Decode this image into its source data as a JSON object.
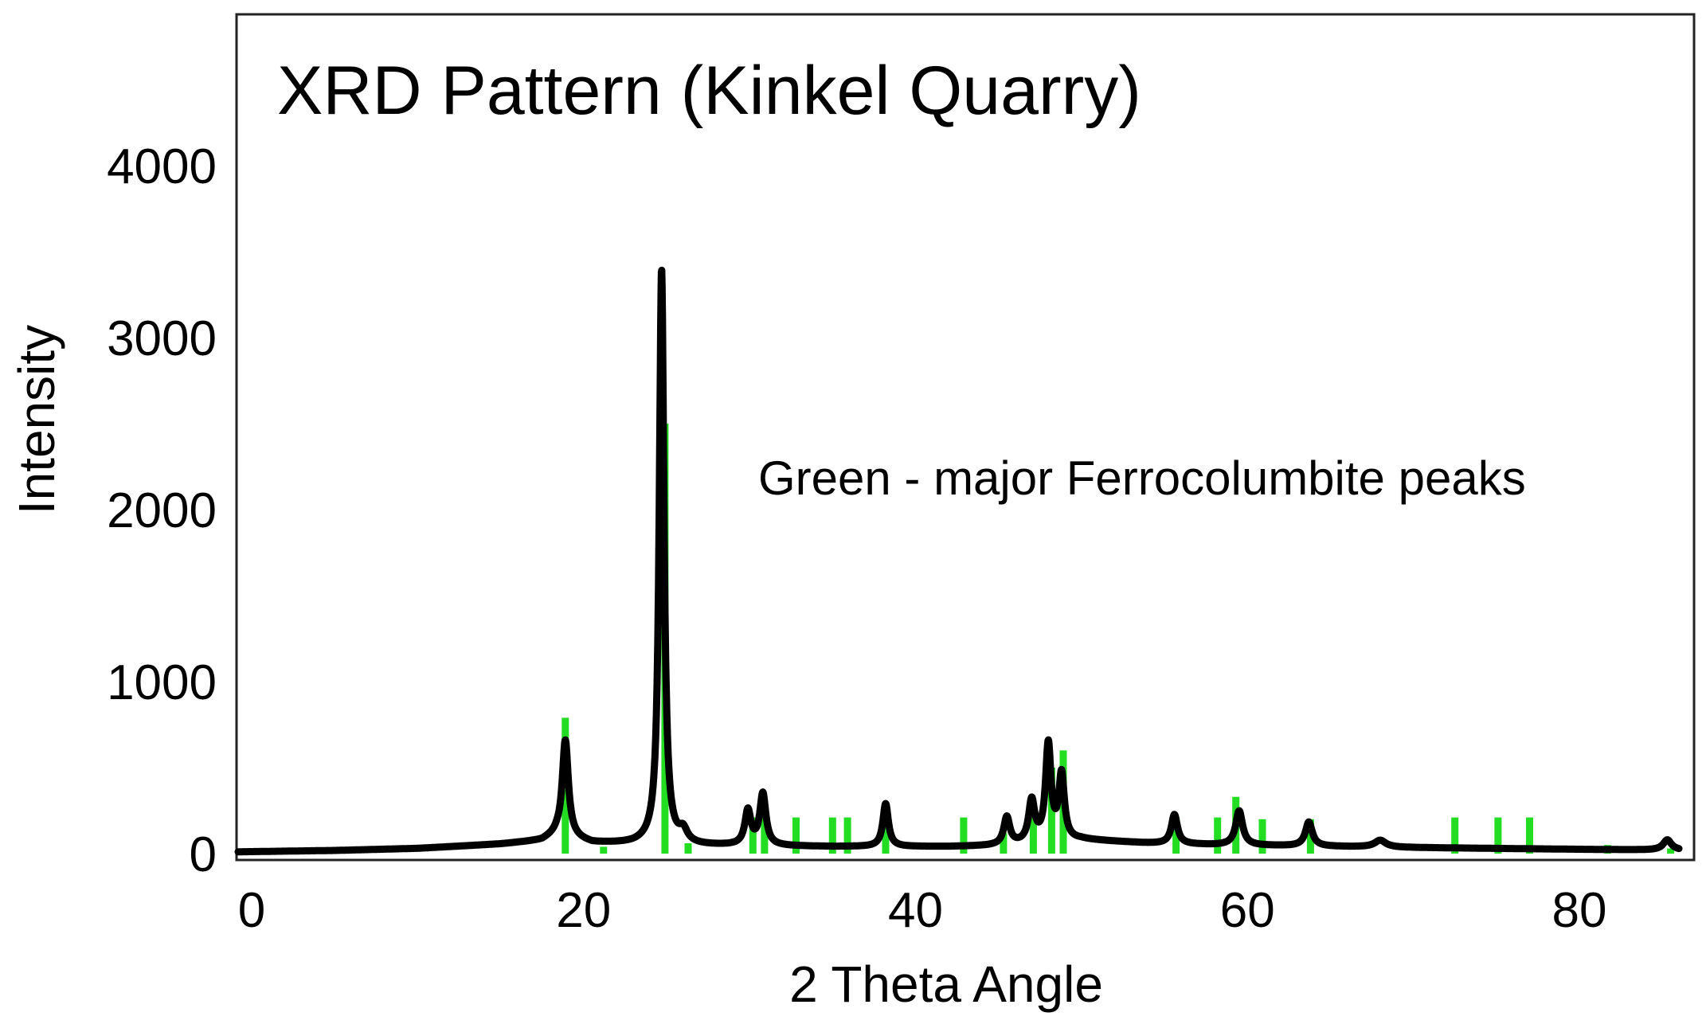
{
  "chart_data": {
    "type": "line",
    "title": "XRD Pattern (Kinkel Quarry)",
    "xlabel": "2 Theta Angle",
    "ylabel": "Intensity",
    "annotation": "Green - major Ferrocolumbite peaks",
    "xlim": [
      -1,
      86
    ],
    "ylim": [
      0,
      4800
    ],
    "x_ticks": [
      0,
      20,
      40,
      60,
      80
    ],
    "x_tick_labels": [
      "0",
      "20",
      "40",
      "60",
      "80"
    ],
    "y_ticks": [
      0,
      1000,
      2000,
      3000,
      4000
    ],
    "y_tick_labels": [
      "0",
      "1000",
      "2000",
      "3000",
      "4000"
    ],
    "grid": false,
    "series": [
      {
        "color": "#000000",
        "baseline": [
          [
            -1,
            10
          ],
          [
            5,
            18
          ],
          [
            10,
            30
          ],
          [
            15,
            55
          ],
          [
            17.5,
            75
          ],
          [
            18.4,
            110
          ],
          [
            20.5,
            60
          ],
          [
            23,
            55
          ],
          [
            24,
            60
          ],
          [
            26,
            45
          ],
          [
            29,
            45
          ],
          [
            35,
            40
          ],
          [
            42,
            40
          ],
          [
            45,
            45
          ],
          [
            50,
            80
          ],
          [
            54,
            60
          ],
          [
            58,
            50
          ],
          [
            62,
            45
          ],
          [
            70,
            35
          ],
          [
            80,
            25
          ],
          [
            86,
            20
          ]
        ],
        "peaks": [
          {
            "x": 18.9,
            "height": 560,
            "width": 0.22
          },
          {
            "x": 24.7,
            "height": 3340,
            "width": 0.17
          },
          {
            "x": 26.0,
            "height": 70,
            "width": 0.3
          },
          {
            "x": 29.9,
            "height": 200,
            "width": 0.22
          },
          {
            "x": 30.8,
            "height": 300,
            "width": 0.22
          },
          {
            "x": 38.2,
            "height": 250,
            "width": 0.2
          },
          {
            "x": 45.5,
            "height": 160,
            "width": 0.22
          },
          {
            "x": 47.0,
            "height": 240,
            "width": 0.22
          },
          {
            "x": 48.0,
            "height": 560,
            "width": 0.2
          },
          {
            "x": 48.8,
            "height": 380,
            "width": 0.2
          },
          {
            "x": 55.6,
            "height": 170,
            "width": 0.22
          },
          {
            "x": 59.5,
            "height": 200,
            "width": 0.25
          },
          {
            "x": 63.7,
            "height": 140,
            "width": 0.25
          },
          {
            "x": 68.0,
            "height": 40,
            "width": 0.4
          },
          {
            "x": 85.3,
            "height": 60,
            "width": 0.3
          }
        ]
      },
      {
        "name": "major Ferrocolumbite peaks",
        "color": "#22dd22",
        "x": [
          18.9,
          21.2,
          24.9,
          26.3,
          30.2,
          30.9,
          32.8,
          35.0,
          35.9,
          38.2,
          42.9,
          45.3,
          47.1,
          48.2,
          48.9,
          55.7,
          58.2,
          59.3,
          60.9,
          63.8,
          72.5,
          75.1,
          77.0,
          81.7,
          85.5
        ],
        "y": [
          790,
          40,
          2500,
          60,
          210,
          210,
          210,
          210,
          210,
          200,
          210,
          120,
          210,
          500,
          600,
          210,
          210,
          330,
          200,
          200,
          210,
          210,
          210,
          50,
          30
        ]
      }
    ]
  }
}
